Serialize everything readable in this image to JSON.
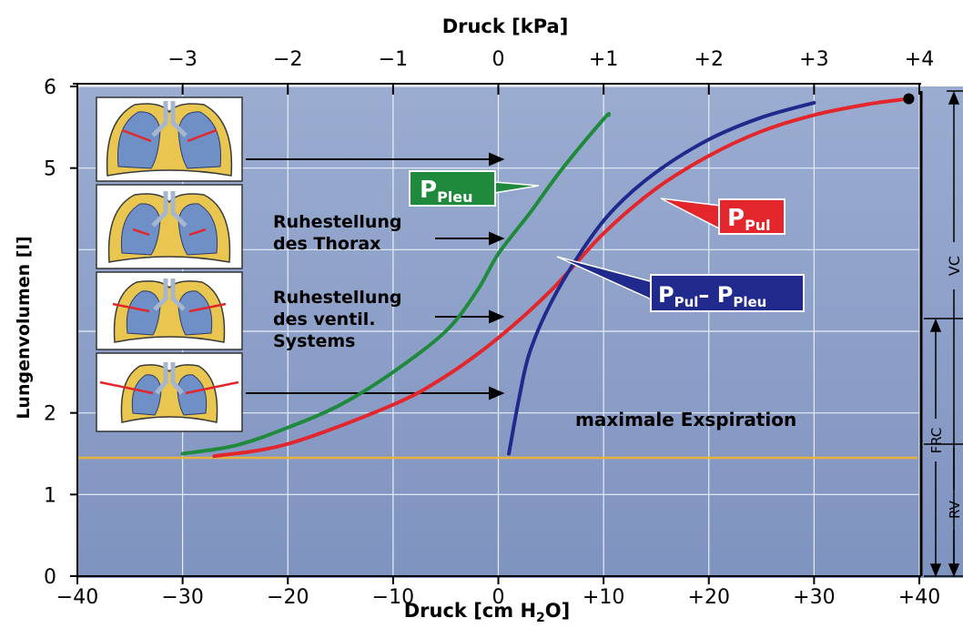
{
  "chart_data": {
    "type": "line",
    "title": "",
    "xlabel_top": "Druck [kPa]",
    "xlabel_bottom_main": "Druck [cm H",
    "xlabel_bottom_sub": "2",
    "xlabel_bottom_tail": "O]",
    "ylabel": "Lungenvolumen [l]",
    "xlim": [
      -40,
      40
    ],
    "ylim": [
      0,
      6
    ],
    "x_ticks_bottom": [
      {
        "value": -40,
        "label": "−40"
      },
      {
        "value": -30,
        "label": "−30"
      },
      {
        "value": -20,
        "label": "−20"
      },
      {
        "value": -10,
        "label": "−10"
      },
      {
        "value": 0,
        "label": "0"
      },
      {
        "value": 10,
        "label": "+10"
      },
      {
        "value": 20,
        "label": "+20"
      },
      {
        "value": 30,
        "label": "+30"
      },
      {
        "value": 40,
        "label": "+40"
      }
    ],
    "x_ticks_top": [
      {
        "value": -30,
        "label": "−3"
      },
      {
        "value": -20,
        "label": "−2"
      },
      {
        "value": -10,
        "label": "−1"
      },
      {
        "value": 0,
        "label": "0"
      },
      {
        "value": 10,
        "label": "+1"
      },
      {
        "value": 20,
        "label": "+2"
      },
      {
        "value": 30,
        "label": "+3"
      },
      {
        "value": 40,
        "label": "+4"
      }
    ],
    "y_ticks": [
      {
        "value": 0,
        "label": "0"
      },
      {
        "value": 1,
        "label": "1"
      },
      {
        "value": 2,
        "label": "2"
      },
      {
        "value": 5,
        "label": "5"
      },
      {
        "value": 6,
        "label": "6"
      }
    ],
    "series": [
      {
        "key": "ppleu",
        "color": "#1f8a3c",
        "points": [
          [
            -30,
            1.5
          ],
          [
            -25,
            1.6
          ],
          [
            -20,
            1.82
          ],
          [
            -15,
            2.1
          ],
          [
            -10,
            2.5
          ],
          [
            -5,
            3.0
          ],
          [
            -2,
            3.5
          ],
          [
            0,
            3.95
          ],
          [
            3,
            4.45
          ],
          [
            6,
            4.98
          ],
          [
            10,
            5.6
          ],
          [
            10.5,
            5.65
          ]
        ]
      },
      {
        "key": "ppul",
        "color": "#e2262b",
        "points": [
          [
            -27,
            1.47
          ],
          [
            -20,
            1.62
          ],
          [
            -10,
            2.1
          ],
          [
            -5,
            2.45
          ],
          [
            0,
            2.92
          ],
          [
            5,
            3.5
          ],
          [
            10,
            4.2
          ],
          [
            15,
            4.75
          ],
          [
            20,
            5.15
          ],
          [
            25,
            5.45
          ],
          [
            30,
            5.65
          ],
          [
            35,
            5.78
          ],
          [
            39,
            5.85
          ]
        ]
      },
      {
        "key": "diff",
        "color": "#1f2a8c",
        "points": [
          [
            1,
            1.5
          ],
          [
            2,
            2.2
          ],
          [
            3,
            2.75
          ],
          [
            5,
            3.35
          ],
          [
            8,
            4.0
          ],
          [
            11,
            4.5
          ],
          [
            15,
            4.95
          ],
          [
            20,
            5.35
          ],
          [
            25,
            5.62
          ],
          [
            30,
            5.8
          ]
        ]
      }
    ],
    "label_ppleu_main": "P",
    "label_ppleu_sub": "Pleu",
    "label_ppul_main": "P",
    "label_ppul_sub": "Pul",
    "label_diff_main1": "P",
    "label_diff_sub1": "Pul",
    "label_diff_dash": "– P",
    "label_diff_sub2": "Pleu",
    "hline": {
      "value": 1.45,
      "color": "#e8b33c",
      "label": "maximale Exspiration"
    },
    "annotations": [
      {
        "lines": [
          "Ruhestellung",
          "des Thorax"
        ]
      },
      {
        "lines": [
          "Ruhestellung",
          "des ventil.",
          "Systems"
        ]
      }
    ],
    "bracket_labels": {
      "vc": "VC",
      "frc": "FRC",
      "rv": "RV"
    },
    "colors": {
      "plot_bg": "#8da0c7",
      "axis": "#000000"
    }
  }
}
